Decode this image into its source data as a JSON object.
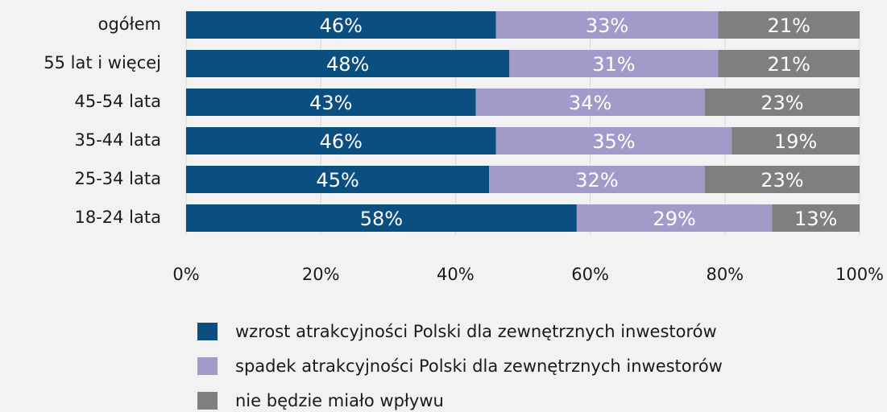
{
  "chart_data": {
    "type": "bar",
    "orientation": "horizontal",
    "stacked": true,
    "categories": [
      "ogółem",
      "55 lat i więcej",
      "45-54 lata",
      "35-44 lata",
      "25-34 lata",
      "18-24 lata"
    ],
    "series": [
      {
        "name": "wzrost atrakcyjności Polski dla zewnętrznych inwestorów",
        "color": "#0b4f80",
        "values": [
          46,
          48,
          43,
          46,
          45,
          58
        ],
        "value_labels": [
          "46%",
          "48%",
          "43%",
          "46%",
          "45%",
          "58%"
        ]
      },
      {
        "name": "spadek atrakcyjności Polski dla zewnętrznych inwestorów",
        "color": "#a29bc9",
        "values": [
          33,
          31,
          34,
          35,
          32,
          29
        ],
        "value_labels": [
          "33%",
          "31%",
          "34%",
          "35%",
          "32%",
          "29%"
        ]
      },
      {
        "name": "nie będzie miało wpływu",
        "color": "#7f7f7f",
        "values": [
          21,
          21,
          23,
          19,
          23,
          13
        ],
        "value_labels": [
          "21%",
          "21%",
          "23%",
          "19%",
          "23%",
          "13%"
        ]
      }
    ],
    "xlim": [
      0,
      100
    ],
    "xticks": [
      {
        "value": 0,
        "label": "0%"
      },
      {
        "value": 20,
        "label": "20%"
      },
      {
        "value": 40,
        "label": "40%"
      },
      {
        "value": 60,
        "label": "60%"
      },
      {
        "value": 80,
        "label": "80%"
      },
      {
        "value": 100,
        "label": "100%"
      }
    ],
    "grid": true,
    "legend": "bottom"
  }
}
